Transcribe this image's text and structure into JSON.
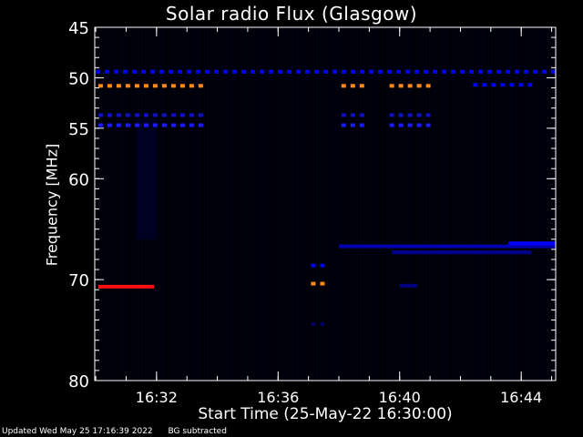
{
  "chart_data": {
    "type": "heatmap",
    "title": "Solar radio Flux (Glasgow)",
    "xlabel": "Start Time (25-May-22 16:30:00)",
    "ylabel": "Frequency [MHz]",
    "xlim": [
      "16:29:58",
      "16:45:08"
    ],
    "ylim": [
      45,
      80
    ],
    "y_axis_inverted": true,
    "x_ticks": [
      "16:32",
      "16:36",
      "16:40",
      "16:44"
    ],
    "y_ticks": [
      45,
      50,
      55,
      60,
      70,
      80
    ],
    "colormap": [
      "#000008",
      "#000044",
      "#0000ff",
      "#ff0000",
      "#ff8c1a"
    ],
    "features": [
      {
        "kind": "dots",
        "freq": 49.4,
        "t_start": "16:30:00",
        "t_end": "16:45:05",
        "color": "#0000ff"
      },
      {
        "kind": "dots",
        "freq": 50.8,
        "t_start": "16:30:05",
        "t_end": "16:33:30",
        "color": "#ff8c1a"
      },
      {
        "kind": "dots",
        "freq": 50.8,
        "t_start": "16:38:05",
        "t_end": "16:38:45",
        "color": "#ff8c1a"
      },
      {
        "kind": "dots",
        "freq": 50.8,
        "t_start": "16:39:40",
        "t_end": "16:41:00",
        "color": "#ff8c1a"
      },
      {
        "kind": "dots",
        "freq": 50.7,
        "t_start": "16:42:25",
        "t_end": "16:44:25",
        "color": "#0000ff"
      },
      {
        "kind": "dots",
        "freq": 53.7,
        "t_start": "16:30:05",
        "t_end": "16:33:30",
        "color": "#1010c0"
      },
      {
        "kind": "dots",
        "freq": 54.7,
        "t_start": "16:30:05",
        "t_end": "16:33:30",
        "color": "#1a1aff"
      },
      {
        "kind": "dots",
        "freq": 53.7,
        "t_start": "16:38:05",
        "t_end": "16:38:45",
        "color": "#1010c0"
      },
      {
        "kind": "dots",
        "freq": 54.7,
        "t_start": "16:38:05",
        "t_end": "16:38:45",
        "color": "#1a1aff"
      },
      {
        "kind": "dots",
        "freq": 53.7,
        "t_start": "16:39:40",
        "t_end": "16:41:00",
        "color": "#1010c0"
      },
      {
        "kind": "dots",
        "freq": 54.7,
        "t_start": "16:39:40",
        "t_end": "16:41:00",
        "color": "#1a1aff"
      },
      {
        "kind": "band",
        "freq": 66.7,
        "t_start": "16:38:00",
        "t_end": "16:45:08",
        "color": "#0000b0"
      },
      {
        "kind": "band",
        "freq": 66.4,
        "t_start": "16:43:35",
        "t_end": "16:45:08",
        "color": "#0000ff"
      },
      {
        "kind": "band",
        "freq": 67.3,
        "t_start": "16:39:45",
        "t_end": "16:44:20",
        "color": "#000090"
      },
      {
        "kind": "dots",
        "freq": 68.6,
        "t_start": "16:37:05",
        "t_end": "16:37:35",
        "color": "#0000ff"
      },
      {
        "kind": "dots",
        "freq": 70.4,
        "t_start": "16:37:05",
        "t_end": "16:37:35",
        "color": "#ff8c1a"
      },
      {
        "kind": "band",
        "freq": 70.7,
        "t_start": "16:30:05",
        "t_end": "16:31:55",
        "color": "#ff1010"
      },
      {
        "kind": "dots",
        "freq": 74.4,
        "t_start": "16:37:05",
        "t_end": "16:37:35",
        "color": "#000060"
      },
      {
        "kind": "band",
        "freq": 70.6,
        "t_start": "16:40:00",
        "t_end": "16:40:35",
        "color": "#000080"
      }
    ]
  },
  "footer": {
    "updated": "Updated Wed May 25 17:16:39 2022",
    "mode": "BG subtracted"
  }
}
